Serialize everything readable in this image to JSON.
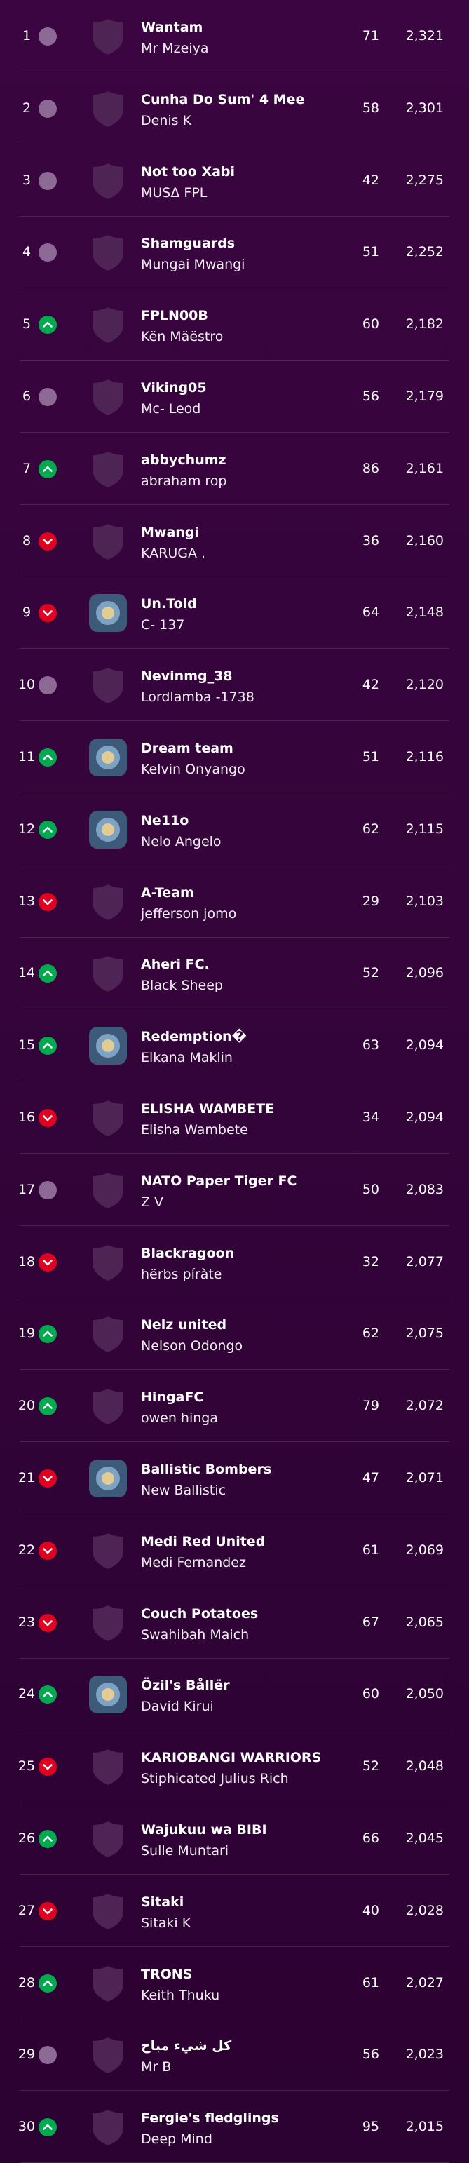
{
  "table": {
    "rows": [
      {
        "rank": 1,
        "movement": "same",
        "badge": "default",
        "team": "Wantam",
        "manager": "Mr Mzeiya",
        "gw": 71,
        "total": "2,321"
      },
      {
        "rank": 2,
        "movement": "same",
        "badge": "default",
        "team": "Cunha Do Sum' 4 Mee",
        "manager": "Denis K",
        "gw": 58,
        "total": "2,301"
      },
      {
        "rank": 3,
        "movement": "same",
        "badge": "default",
        "team": "Not too Xabi",
        "manager": "MUSΔ FPL",
        "gw": 42,
        "total": "2,275"
      },
      {
        "rank": 4,
        "movement": "same",
        "badge": "default",
        "team": "Shamguards",
        "manager": "Mungai Mwangi",
        "gw": 51,
        "total": "2,252"
      },
      {
        "rank": 5,
        "movement": "up",
        "badge": "default",
        "team": "FPLN00B",
        "manager": "Kën Mäëstro",
        "gw": 60,
        "total": "2,182"
      },
      {
        "rank": 6,
        "movement": "same",
        "badge": "default",
        "team": "Viking05",
        "manager": "Mc- Leod",
        "gw": 56,
        "total": "2,179"
      },
      {
        "rank": 7,
        "movement": "up",
        "badge": "default",
        "team": "abbychumz",
        "manager": "abraham rop",
        "gw": 86,
        "total": "2,161"
      },
      {
        "rank": 8,
        "movement": "down",
        "badge": "default",
        "team": "Mwangi",
        "manager": "KARUGA .",
        "gw": 36,
        "total": "2,160"
      },
      {
        "rank": 9,
        "movement": "down",
        "badge": "custom",
        "team": "Un.Told",
        "manager": "C- 137",
        "gw": 64,
        "total": "2,148"
      },
      {
        "rank": 10,
        "movement": "same",
        "badge": "default",
        "team": "Nevinmg_38",
        "manager": "Lordlamba -1738",
        "gw": 42,
        "total": "2,120"
      },
      {
        "rank": 11,
        "movement": "up",
        "badge": "custom",
        "team": "Dream team",
        "manager": "Kelvin Onyango",
        "gw": 51,
        "total": "2,116"
      },
      {
        "rank": 12,
        "movement": "up",
        "badge": "custom",
        "team": "Ne11o",
        "manager": "Nelo Angelo",
        "gw": 62,
        "total": "2,115"
      },
      {
        "rank": 13,
        "movement": "down",
        "badge": "default",
        "team": "A-Team",
        "manager": "jefferson jomo",
        "gw": 29,
        "total": "2,103"
      },
      {
        "rank": 14,
        "movement": "up",
        "badge": "default",
        "team": "Aheri FC.",
        "manager": "Black Sheep",
        "gw": 52,
        "total": "2,096"
      },
      {
        "rank": 15,
        "movement": "up",
        "badge": "custom",
        "team": "Redemption�",
        "manager": "Elkana Maklin",
        "gw": 63,
        "total": "2,094"
      },
      {
        "rank": 16,
        "movement": "down",
        "badge": "default",
        "team": "ELISHA WAMBETE",
        "manager": "Elisha Wambete",
        "gw": 34,
        "total": "2,094"
      },
      {
        "rank": 17,
        "movement": "same",
        "badge": "default",
        "team": "NATO Paper Tiger FC",
        "manager": "Z V",
        "gw": 50,
        "total": "2,083"
      },
      {
        "rank": 18,
        "movement": "down",
        "badge": "default",
        "team": "Blackragoon",
        "manager": "hërbs píràte",
        "gw": 32,
        "total": "2,077"
      },
      {
        "rank": 19,
        "movement": "up",
        "badge": "default",
        "team": "Nelz united",
        "manager": "Nelson Odongo",
        "gw": 62,
        "total": "2,075"
      },
      {
        "rank": 20,
        "movement": "up",
        "badge": "default",
        "team": "HingaFC",
        "manager": "owen hinga",
        "gw": 79,
        "total": "2,072"
      },
      {
        "rank": 21,
        "movement": "down",
        "badge": "custom",
        "team": "Ballistic Bombers",
        "manager": "New Ballistic",
        "gw": 47,
        "total": "2,071"
      },
      {
        "rank": 22,
        "movement": "down",
        "badge": "default",
        "team": "Medi Red United",
        "manager": "Medi Fernandez",
        "gw": 61,
        "total": "2,069"
      },
      {
        "rank": 23,
        "movement": "down",
        "badge": "default",
        "team": "Couch Potatoes",
        "manager": "Swahibah Maich",
        "gw": 67,
        "total": "2,065"
      },
      {
        "rank": 24,
        "movement": "up",
        "badge": "custom",
        "team": "Özil's Bållër",
        "manager": "David Kirui",
        "gw": 60,
        "total": "2,050"
      },
      {
        "rank": 25,
        "movement": "down",
        "badge": "default",
        "team": "KARIOBANGI WARRIORS",
        "manager": "Stiphicated Julius Rich",
        "gw": 52,
        "total": "2,048"
      },
      {
        "rank": 26,
        "movement": "up",
        "badge": "default",
        "team": "Wajukuu wa BIBI",
        "manager": "Sulle Muntari",
        "gw": 66,
        "total": "2,045"
      },
      {
        "rank": 27,
        "movement": "down",
        "badge": "default",
        "team": "Sitaki",
        "manager": "Sitaki K",
        "gw": 40,
        "total": "2,028"
      },
      {
        "rank": 28,
        "movement": "up",
        "badge": "default",
        "team": "TRONS",
        "manager": "Keith Thuku",
        "gw": 61,
        "total": "2,027"
      },
      {
        "rank": 29,
        "movement": "same",
        "badge": "default",
        "team": "كل شيء مباح",
        "manager": "Mr B",
        "gw": 56,
        "total": "2,023"
      },
      {
        "rank": 30,
        "movement": "up",
        "badge": "default",
        "team": "Fergie's fledglings",
        "manager": "Deep Mind",
        "gw": 95,
        "total": "2,015"
      }
    ]
  }
}
